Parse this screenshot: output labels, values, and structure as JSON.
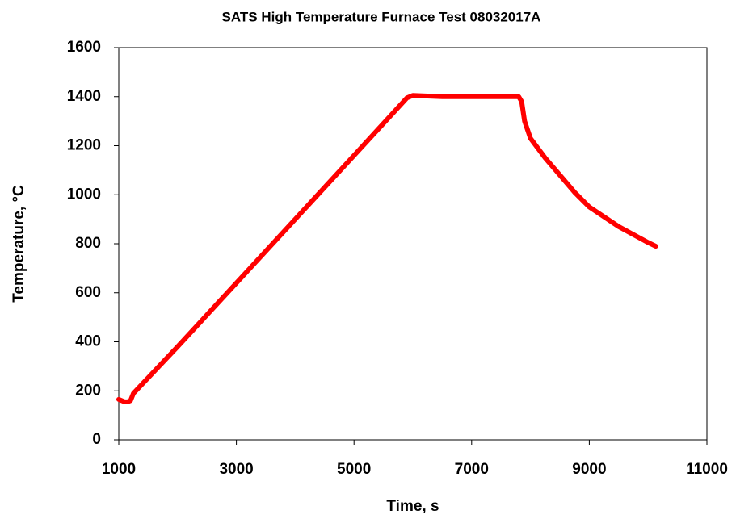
{
  "chart_data": {
    "type": "line",
    "title": "SATS High Temperature Furnace Test 08032017A",
    "xlabel": "Time, s",
    "ylabel": "Temperature, °C",
    "x": [
      1000,
      1050,
      1100,
      1150,
      1200,
      1250,
      2000,
      3000,
      4000,
      5000,
      5900,
      6000,
      6500,
      7000,
      7500,
      7800,
      7850,
      7900,
      8000,
      8250,
      8500,
      8750,
      9000,
      9500,
      10000,
      10130
    ],
    "series": [
      {
        "name": "Temperature",
        "color": "#ff0000",
        "values": [
          165,
          160,
          155,
          155,
          160,
          190,
          380,
          640,
          900,
          1160,
          1395,
          1405,
          1400,
          1400,
          1400,
          1400,
          1380,
          1300,
          1230,
          1150,
          1080,
          1010,
          950,
          870,
          805,
          790
        ]
      }
    ],
    "xlim": [
      1000,
      11000
    ],
    "xticks": [
      1000,
      3000,
      5000,
      7000,
      9000,
      11000
    ],
    "ylim": [
      0,
      1600
    ],
    "yticks": [
      0,
      200,
      400,
      600,
      800,
      1000,
      1200,
      1400,
      1600
    ],
    "grid": false
  }
}
